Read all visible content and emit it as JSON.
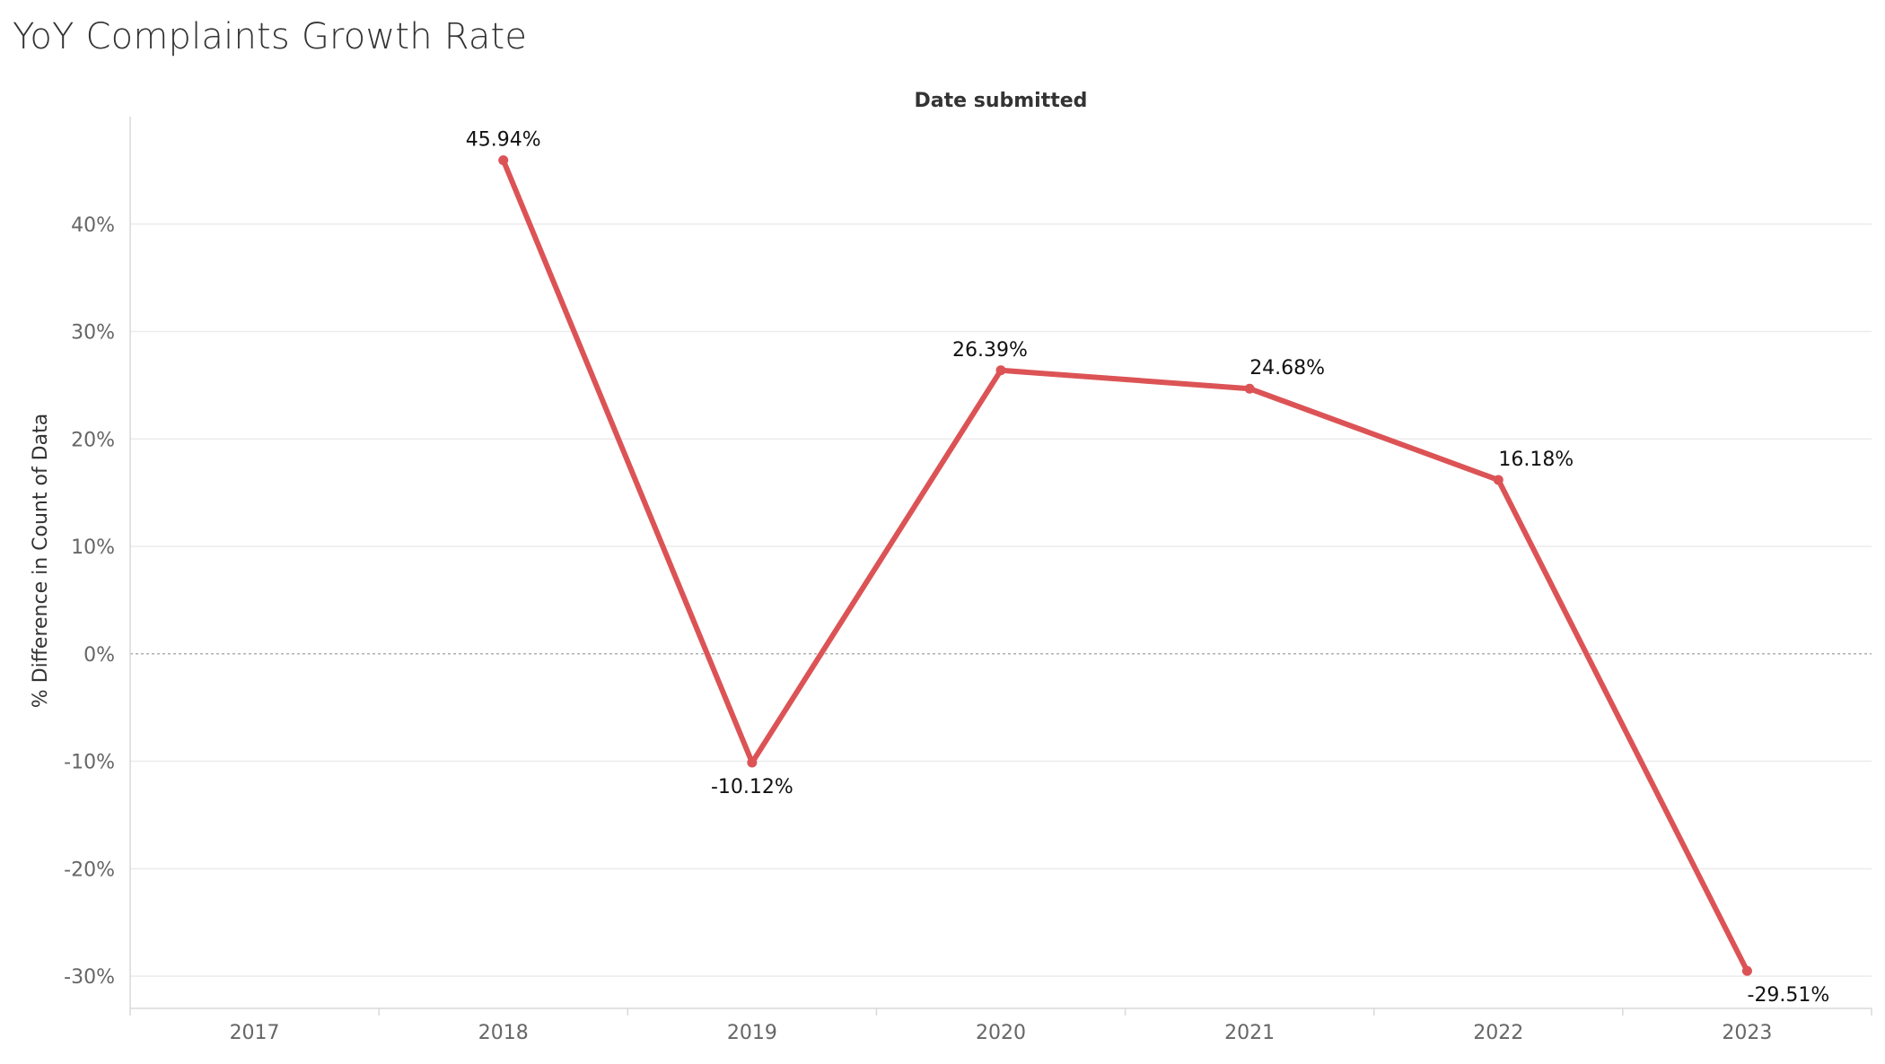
{
  "title": "YoY Complaints Growth Rate",
  "chart_data": {
    "type": "line",
    "title": "YoY Complaints Growth Rate",
    "xlabel": "Date submitted",
    "ylabel": "% Difference in Count of Data",
    "categories": [
      "2017",
      "2018",
      "2019",
      "2020",
      "2021",
      "2022",
      "2023"
    ],
    "series": [
      {
        "values": [
          null,
          45.94,
          -10.12,
          26.39,
          24.68,
          16.18,
          -29.51
        ],
        "labels": [
          "",
          "45.94%",
          "-10.12%",
          "26.39%",
          "24.68%",
          "16.18%",
          "-29.51%"
        ],
        "color": "#dc5356"
      }
    ],
    "ylim": [
      -33,
      50
    ],
    "yticks": [
      40,
      30,
      20,
      10,
      0,
      -10,
      -20,
      -30
    ],
    "ytick_labels": [
      "40%",
      "30%",
      "20%",
      "10%",
      "0%",
      "-10%",
      "-20%",
      "-30%"
    ],
    "grid": true,
    "zero_line": "dashed"
  }
}
